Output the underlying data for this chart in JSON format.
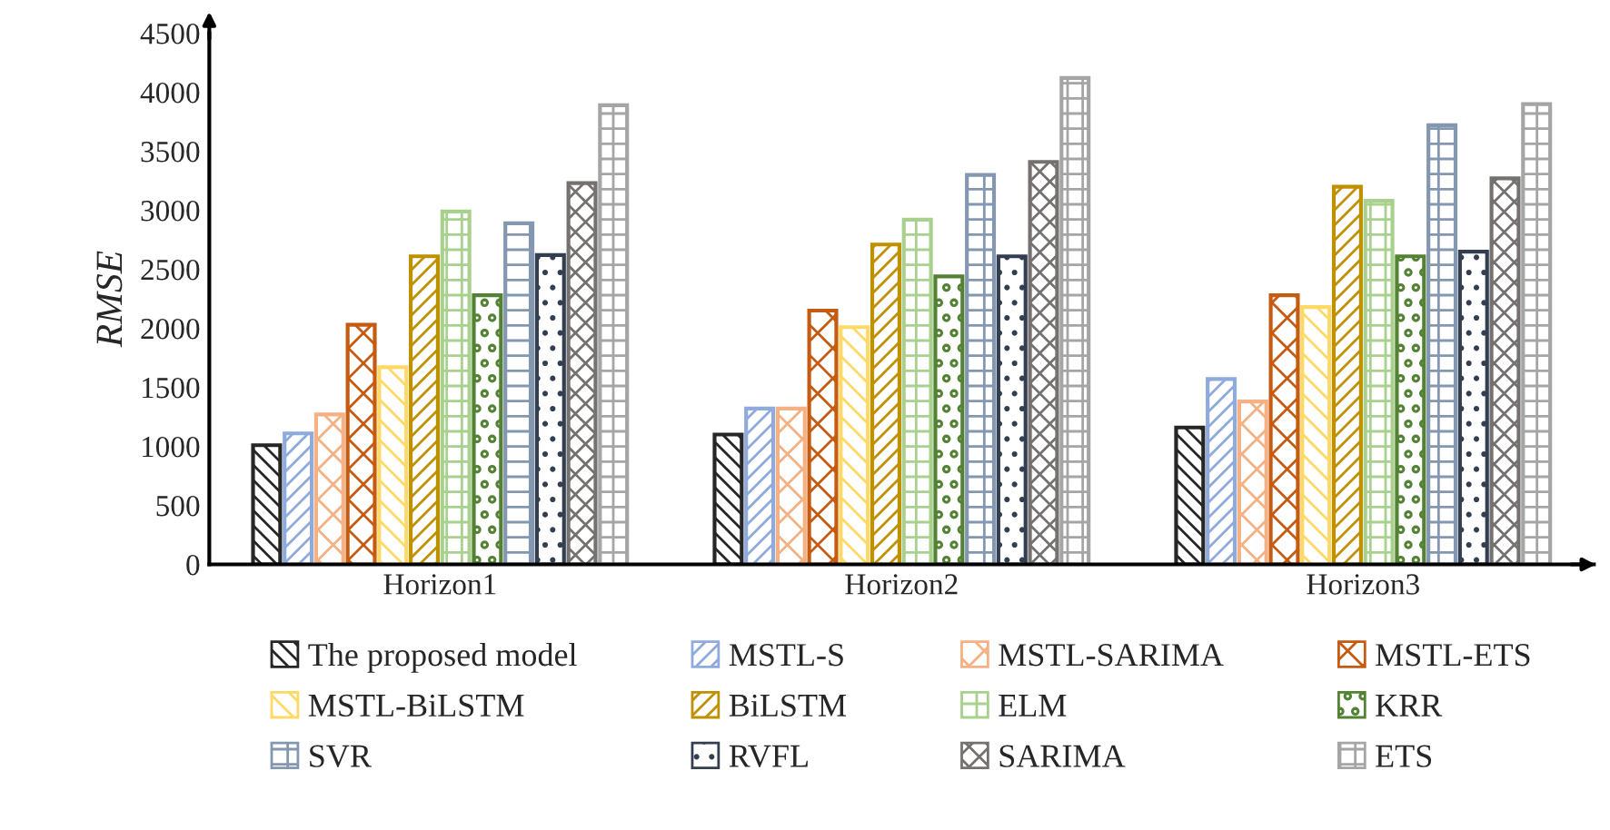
{
  "chart_data": {
    "type": "bar",
    "ylabel": "RMSE",
    "categories": [
      "Horizon1",
      "Horizon2",
      "Horizon3"
    ],
    "series": [
      {
        "name": "The proposed model",
        "color": "#262626",
        "values": [
          1010,
          1100,
          1160
        ]
      },
      {
        "name": "MSTL-S",
        "color": "#8faadc",
        "values": [
          1110,
          1320,
          1570
        ]
      },
      {
        "name": "MSTL-SARIMA",
        "color": "#f4b183",
        "values": [
          1270,
          1320,
          1380
        ]
      },
      {
        "name": "MSTL-ETS",
        "color": "#c55a11",
        "values": [
          2030,
          2150,
          2280
        ]
      },
      {
        "name": "MSTL-BiLSTM",
        "color": "#ffd966",
        "values": [
          1670,
          2010,
          2180
        ]
      },
      {
        "name": "BiLSTM",
        "color": "#bf9000",
        "values": [
          2610,
          2710,
          3200
        ]
      },
      {
        "name": "ELM",
        "color": "#a9d18e",
        "values": [
          2990,
          2920,
          3080
        ]
      },
      {
        "name": "KRR",
        "color": "#548235",
        "values": [
          2280,
          2440,
          2610
        ]
      },
      {
        "name": "SVR",
        "color": "#8497b0",
        "values": [
          2890,
          3300,
          3720
        ]
      },
      {
        "name": "RVFL",
        "color": "#333f50",
        "values": [
          2620,
          2610,
          2650
        ]
      },
      {
        "name": "SARIMA",
        "color": "#767171",
        "values": [
          3230,
          3410,
          3270
        ]
      },
      {
        "name": "ETS",
        "color": "#a5a5a5",
        "values": [
          3890,
          4120,
          3900
        ]
      }
    ],
    "ylim": [
      0,
      4500
    ],
    "yticks": [
      0,
      500,
      1000,
      1500,
      2000,
      2500,
      3000,
      3500,
      4000,
      4500
    ],
    "grid": false,
    "legend": "bottom"
  }
}
